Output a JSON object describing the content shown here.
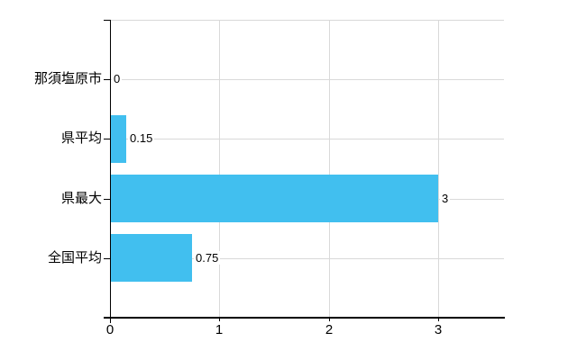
{
  "chart": {
    "background_color": "#ffffff",
    "bar_color": "#41bfef",
    "grid_color": "#d9d9d9",
    "axis_color": "#000000",
    "text_color": "#000000"
  },
  "chart_data": {
    "type": "bar",
    "orientation": "horizontal",
    "title": "",
    "xlabel": "",
    "ylabel": "",
    "categories": [
      "那須塩原市",
      "県平均",
      "県最大",
      "全国平均"
    ],
    "values": [
      0,
      0.15,
      3,
      0.75
    ],
    "value_labels": [
      "0",
      "0.15",
      "3",
      "0.75"
    ],
    "x_tick_labels": [
      "0",
      "1",
      "2",
      "3"
    ],
    "x_tick_values": [
      0,
      1,
      2,
      3
    ],
    "xlim": [
      0,
      3.6
    ],
    "grid": true,
    "legend": false
  }
}
